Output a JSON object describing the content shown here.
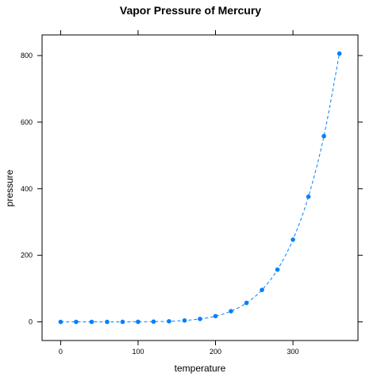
{
  "chart_data": {
    "type": "line",
    "title": "Vapor Pressure of Mercury",
    "xlabel": "temperature",
    "ylabel": "pressure",
    "xlim": [
      -24,
      384
    ],
    "ylim": [
      -56,
      862
    ],
    "xticks": [
      0,
      100,
      200,
      300
    ],
    "yticks": [
      0,
      200,
      400,
      600,
      800
    ],
    "grid": false,
    "legend": "none",
    "line_style": "dashed",
    "marker": "filled-circle",
    "color": "#0080ff",
    "series": [
      {
        "x": [
          0,
          20,
          40,
          60,
          80,
          100,
          120,
          140,
          160,
          180,
          200,
          220,
          240,
          260,
          280,
          300,
          320,
          340,
          360
        ],
        "values": [
          0.0002,
          0.0012,
          0.006,
          0.03,
          0.09,
          0.27,
          0.75,
          1.85,
          4.2,
          8.8,
          17.3,
          32.1,
          57.0,
          96.0,
          157.0,
          247.0,
          376.0,
          558.0,
          806.0
        ]
      }
    ]
  }
}
